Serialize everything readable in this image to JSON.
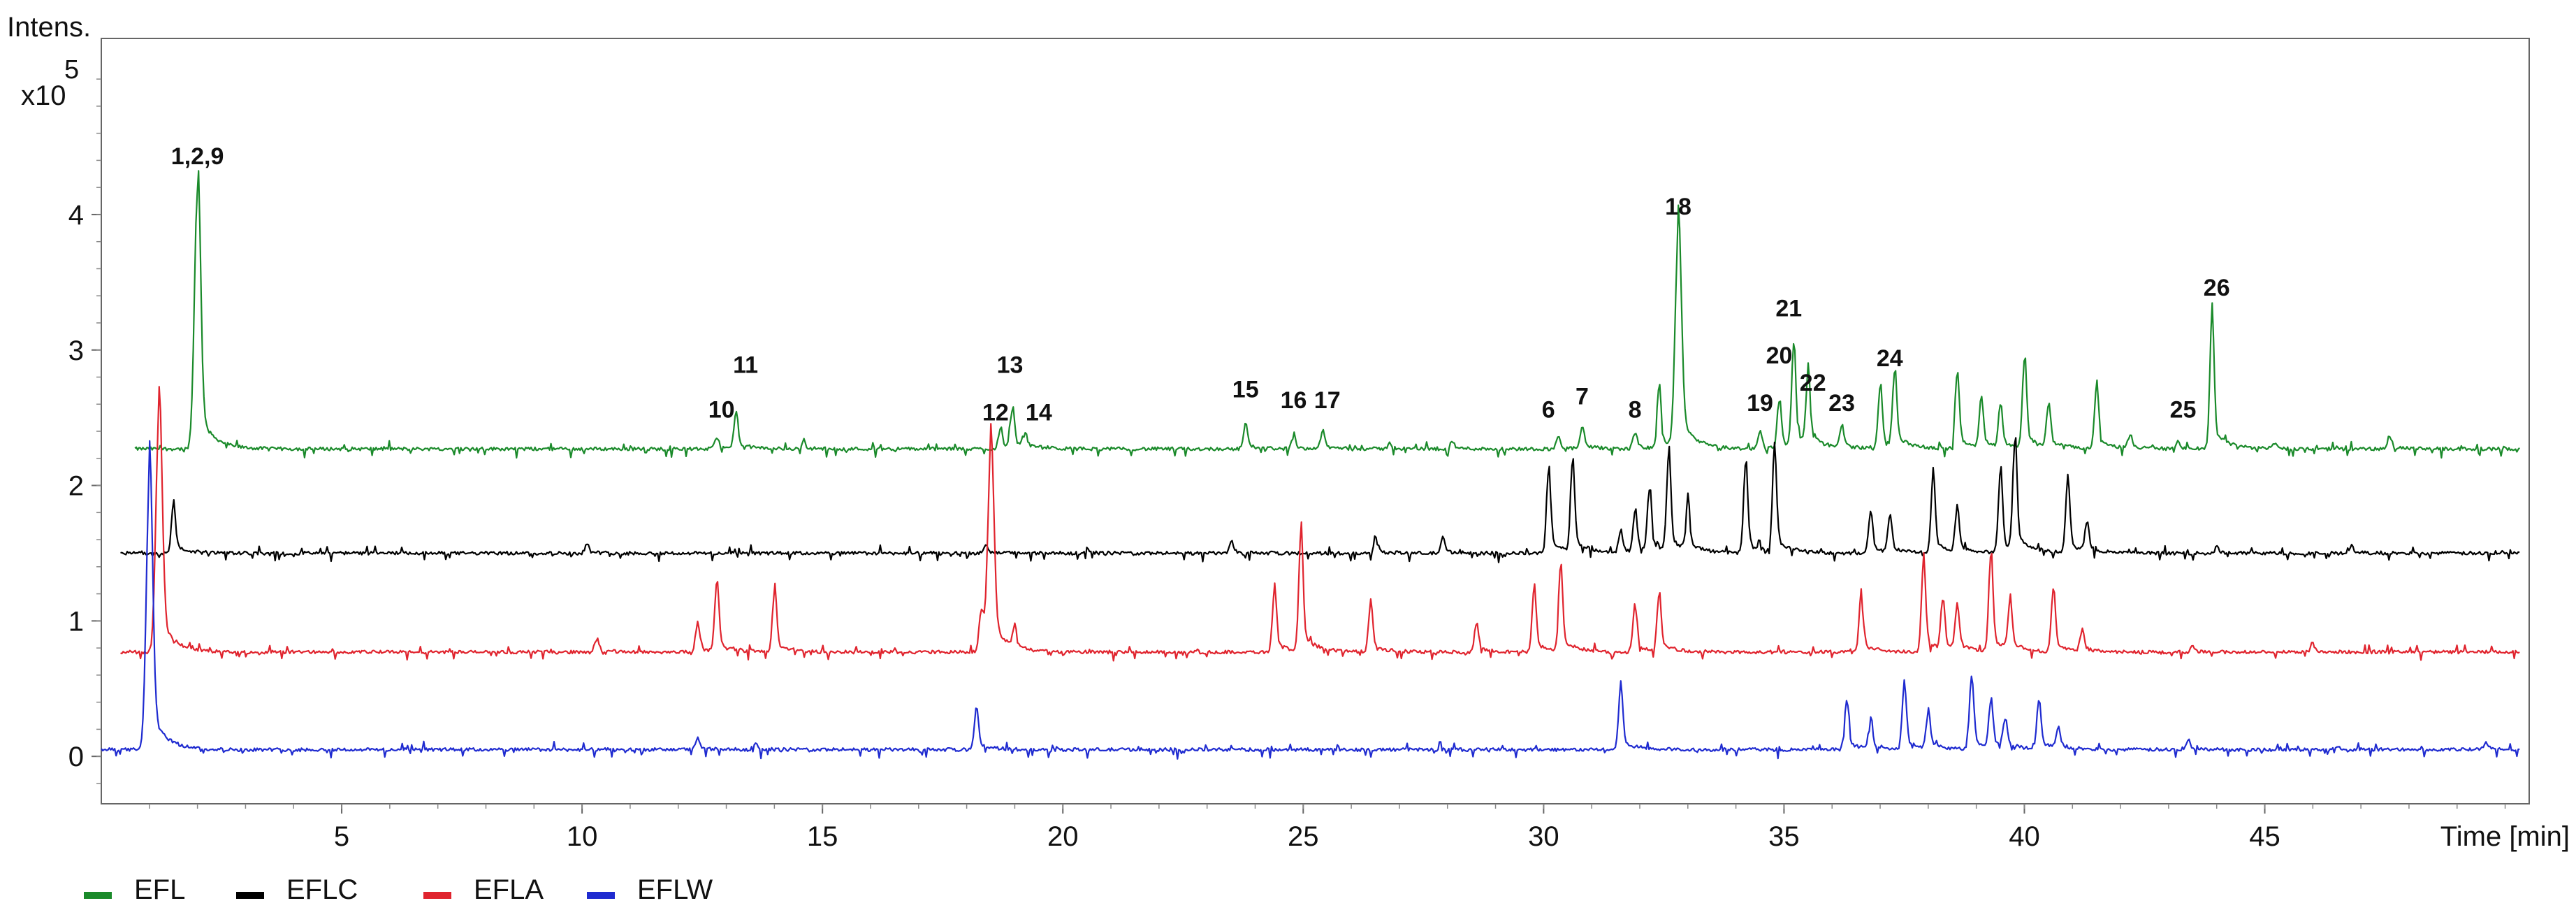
{
  "chart_data": {
    "type": "line",
    "ylabel": "Intens.",
    "yexp_prefix": "x10",
    "yexp_power": "5",
    "xlabel": "Time [min]",
    "xlim": [
      0,
      50.5
    ],
    "ylim": [
      -0.35,
      5.3
    ],
    "xticks": [
      5,
      10,
      15,
      20,
      25,
      30,
      35,
      40,
      45
    ],
    "yticks": [
      0,
      1,
      2,
      3,
      4
    ],
    "grid": false,
    "legend_position": "bottom-left",
    "series": [
      {
        "name": "EFL",
        "color": "#1a8a2a",
        "baseline": 2.27,
        "x_start": 0.7,
        "x_end": 50.3,
        "peaks": [
          [
            2.0,
            1.9
          ],
          [
            12.8,
            0.08
          ],
          [
            13.2,
            0.25
          ],
          [
            14.6,
            0.05
          ],
          [
            18.7,
            0.15
          ],
          [
            18.95,
            0.28
          ],
          [
            19.2,
            0.1
          ],
          [
            23.8,
            0.18
          ],
          [
            24.8,
            0.08
          ],
          [
            25.4,
            0.12
          ],
          [
            26.8,
            0.04
          ],
          [
            28.1,
            0.05
          ],
          [
            30.3,
            0.08
          ],
          [
            30.8,
            0.15
          ],
          [
            31.9,
            0.12
          ],
          [
            32.4,
            0.45
          ],
          [
            32.8,
            1.55
          ],
          [
            34.5,
            0.12
          ],
          [
            34.9,
            0.35
          ],
          [
            35.2,
            0.75
          ],
          [
            35.5,
            0.5
          ],
          [
            36.2,
            0.15
          ],
          [
            37.0,
            0.45
          ],
          [
            37.3,
            0.55
          ],
          [
            38.6,
            0.55
          ],
          [
            39.1,
            0.35
          ],
          [
            39.5,
            0.3
          ],
          [
            40.0,
            0.65
          ],
          [
            40.5,
            0.3
          ],
          [
            41.5,
            0.45
          ],
          [
            42.2,
            0.1
          ],
          [
            43.2,
            0.05
          ],
          [
            43.9,
            0.95
          ],
          [
            45.2,
            0.05
          ],
          [
            47.6,
            0.08
          ]
        ]
      },
      {
        "name": "EFLC",
        "color": "#000000",
        "baseline": 1.5,
        "x_start": 0.4,
        "x_end": 50.3,
        "peaks": [
          [
            1.5,
            0.35
          ],
          [
            10.1,
            0.06
          ],
          [
            18.4,
            0.05
          ],
          [
            20.5,
            0.04
          ],
          [
            23.5,
            0.08
          ],
          [
            26.5,
            0.1
          ],
          [
            27.9,
            0.1
          ],
          [
            30.1,
            0.6
          ],
          [
            30.6,
            0.65
          ],
          [
            31.6,
            0.15
          ],
          [
            31.9,
            0.3
          ],
          [
            32.2,
            0.45
          ],
          [
            32.6,
            0.7
          ],
          [
            33.0,
            0.35
          ],
          [
            34.2,
            0.65
          ],
          [
            34.8,
            0.7
          ],
          [
            36.8,
            0.3
          ],
          [
            37.2,
            0.25
          ],
          [
            38.1,
            0.55
          ],
          [
            38.6,
            0.3
          ],
          [
            39.5,
            0.6
          ],
          [
            39.8,
            0.8
          ],
          [
            40.9,
            0.5
          ],
          [
            41.3,
            0.2
          ],
          [
            44.0,
            0.04
          ],
          [
            46.8,
            0.05
          ]
        ]
      },
      {
        "name": "EFLA",
        "color": "#e0242e",
        "baseline": 0.77,
        "x_start": 0.4,
        "x_end": 50.3,
        "peaks": [
          [
            1.2,
            1.75
          ],
          [
            10.3,
            0.1
          ],
          [
            12.4,
            0.2
          ],
          [
            12.8,
            0.5
          ],
          [
            14.0,
            0.45
          ],
          [
            18.3,
            0.3
          ],
          [
            18.5,
            1.45
          ],
          [
            19.0,
            0.15
          ],
          [
            24.4,
            0.45
          ],
          [
            24.95,
            0.85
          ],
          [
            26.4,
            0.35
          ],
          [
            28.6,
            0.2
          ],
          [
            29.8,
            0.45
          ],
          [
            30.35,
            0.6
          ],
          [
            31.9,
            0.35
          ],
          [
            32.4,
            0.4
          ],
          [
            36.6,
            0.4
          ],
          [
            37.9,
            0.65
          ],
          [
            38.3,
            0.35
          ],
          [
            38.6,
            0.3
          ],
          [
            39.3,
            0.7
          ],
          [
            39.7,
            0.35
          ],
          [
            40.6,
            0.45
          ],
          [
            41.2,
            0.15
          ],
          [
            43.5,
            0.05
          ],
          [
            46.0,
            0.05
          ]
        ]
      },
      {
        "name": "EFLW",
        "color": "#1f2bd0",
        "baseline": 0.05,
        "x_start": 0.0,
        "x_end": 50.3,
        "peaks": [
          [
            1.0,
            2.0
          ],
          [
            12.4,
            0.08
          ],
          [
            13.6,
            0.05
          ],
          [
            18.2,
            0.3
          ],
          [
            31.6,
            0.45
          ],
          [
            36.3,
            0.35
          ],
          [
            36.8,
            0.2
          ],
          [
            37.5,
            0.45
          ],
          [
            38.0,
            0.25
          ],
          [
            38.9,
            0.55
          ],
          [
            39.3,
            0.35
          ],
          [
            39.6,
            0.2
          ],
          [
            40.3,
            0.35
          ],
          [
            40.7,
            0.15
          ],
          [
            43.4,
            0.06
          ],
          [
            46.5,
            0.03
          ],
          [
            49.6,
            0.05
          ]
        ]
      }
    ],
    "annotations": [
      {
        "text": "1,2,9",
        "x": 2.0,
        "y": 4.37
      },
      {
        "text": "10",
        "x": 12.9,
        "y": 2.5
      },
      {
        "text": "11",
        "x": 13.4,
        "y": 2.83
      },
      {
        "text": "12",
        "x": 18.6,
        "y": 2.48
      },
      {
        "text": "13",
        "x": 18.9,
        "y": 2.83
      },
      {
        "text": "14",
        "x": 19.5,
        "y": 2.48
      },
      {
        "text": "15",
        "x": 23.8,
        "y": 2.65
      },
      {
        "text": "16",
        "x": 24.8,
        "y": 2.57
      },
      {
        "text": "17",
        "x": 25.5,
        "y": 2.57
      },
      {
        "text": "6",
        "x": 30.1,
        "y": 2.5
      },
      {
        "text": "7",
        "x": 30.8,
        "y": 2.6
      },
      {
        "text": "8",
        "x": 31.9,
        "y": 2.5
      },
      {
        "text": "18",
        "x": 32.8,
        "y": 4.0
      },
      {
        "text": "19",
        "x": 34.5,
        "y": 2.55
      },
      {
        "text": "20",
        "x": 34.9,
        "y": 2.9
      },
      {
        "text": "21",
        "x": 35.1,
        "y": 3.25
      },
      {
        "text": "22",
        "x": 35.6,
        "y": 2.7
      },
      {
        "text": "23",
        "x": 36.2,
        "y": 2.55
      },
      {
        "text": "24",
        "x": 37.2,
        "y": 2.88
      },
      {
        "text": "25",
        "x": 43.3,
        "y": 2.5
      },
      {
        "text": "26",
        "x": 44.0,
        "y": 3.4
      }
    ]
  }
}
